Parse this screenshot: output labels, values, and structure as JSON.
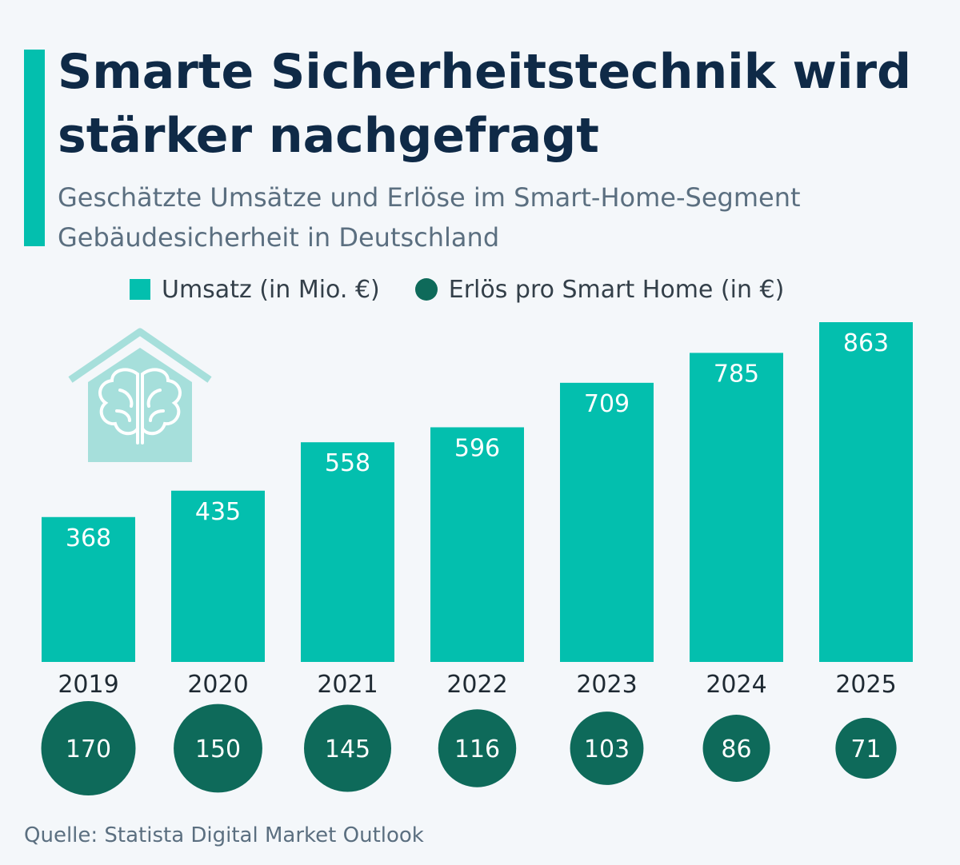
{
  "colors": {
    "accent": "#03bfae",
    "dot": "#0e6a5a",
    "icon_bg": "#a6dfdb",
    "text_dark": "#0f2a47"
  },
  "header": {
    "title": "Smarte Sicherheitstechnik wird stärker nachgefragt",
    "subtitle": "Geschätzte Umsätze und Erlöse im Smart-Home-Segment Gebäudesicherheit in Deutschland"
  },
  "icon": "smart-home-brain-icon",
  "chart_data": {
    "type": "bar",
    "categories": [
      "2019",
      "2020",
      "2021",
      "2022",
      "2023",
      "2024",
      "2025"
    ],
    "series": [
      {
        "name": "Umsatz (in Mio. €)",
        "values": [
          368,
          435,
          558,
          596,
          709,
          785,
          863
        ]
      },
      {
        "name": "Erlös pro Smart Home (in €)",
        "values": [
          170,
          150,
          145,
          116,
          103,
          86,
          71
        ]
      }
    ],
    "legend": [
      "Umsatz (in Mio. €)",
      "Erlös pro Smart Home (in €)"
    ],
    "legend_position": "top"
  },
  "footer": {
    "source": "Quelle: Statista Digital Market Outlook"
  }
}
